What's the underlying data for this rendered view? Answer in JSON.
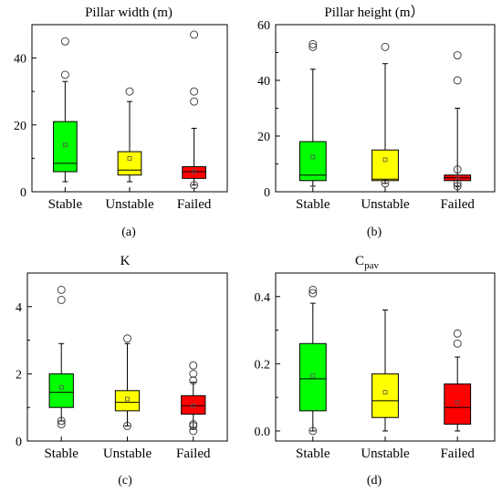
{
  "colors": {
    "stable": "#00ff00",
    "unstable": "#ffff00",
    "failed": "#ff0000"
  },
  "chart_data": [
    {
      "type": "boxplot",
      "panel": "(a)",
      "title": "Pillar width (m)",
      "categories": [
        "Stable",
        "Unstable",
        "Failed"
      ],
      "ylim": [
        0,
        50
      ],
      "yticks": [
        0,
        20,
        40
      ],
      "boxes": [
        {
          "q1": 6,
          "median": 8.5,
          "q3": 21,
          "mean": 14,
          "whisker_low": 3,
          "whisker_high": 33,
          "outliers": [
            35,
            45
          ]
        },
        {
          "q1": 5,
          "median": 6.5,
          "q3": 12,
          "mean": 10,
          "whisker_low": 3,
          "whisker_high": 27,
          "outliers": [
            30
          ]
        },
        {
          "q1": 4,
          "median": 6,
          "q3": 7.5,
          "mean": 6,
          "whisker_low": 2,
          "whisker_high": 19,
          "outliers": [
            2,
            27,
            30,
            47
          ]
        }
      ]
    },
    {
      "type": "boxplot",
      "panel": "(b)",
      "title": "Pillar height (m）",
      "categories": [
        "Stable",
        "Unstable",
        "Failed"
      ],
      "ylim": [
        0,
        60
      ],
      "yticks": [
        0,
        20,
        40,
        60
      ],
      "boxes": [
        {
          "q1": 4,
          "median": 6,
          "q3": 18,
          "mean": 12.5,
          "whisker_low": 2,
          "whisker_high": 44,
          "outliers": [
            52,
            53
          ]
        },
        {
          "q1": 4,
          "median": 4.5,
          "q3": 15,
          "mean": 11.5,
          "whisker_low": 3,
          "whisker_high": 46,
          "outliers": [
            3,
            52
          ]
        },
        {
          "q1": 4,
          "median": 5,
          "q3": 6,
          "mean": 5.5,
          "whisker_low": 2,
          "whisker_high": 30,
          "outliers": [
            2,
            3,
            8,
            40,
            49
          ]
        }
      ]
    },
    {
      "type": "boxplot",
      "panel": "(c)",
      "title": "K",
      "categories": [
        "Stable",
        "Unstable",
        "Failed"
      ],
      "ylim": [
        0,
        5
      ],
      "yticks": [
        0,
        2,
        4
      ],
      "boxes": [
        {
          "q1": 1.0,
          "median": 1.45,
          "q3": 2.0,
          "mean": 1.6,
          "whisker_low": 0.6,
          "whisker_high": 2.9,
          "outliers": [
            0.5,
            0.6,
            4.2,
            4.5
          ]
        },
        {
          "q1": 0.9,
          "median": 1.15,
          "q3": 1.5,
          "mean": 1.25,
          "whisker_low": 0.45,
          "whisker_high": 2.9,
          "outliers": [
            0.45,
            3.05
          ]
        },
        {
          "q1": 0.8,
          "median": 1.05,
          "q3": 1.35,
          "mean": 1.05,
          "whisker_low": 0.35,
          "whisker_high": 1.75,
          "outliers": [
            0.3,
            0.45,
            0.5,
            1.8,
            2.0,
            2.25
          ]
        }
      ]
    },
    {
      "type": "boxplot",
      "panel": "(d)",
      "title_main": "C",
      "title_sub": "pav",
      "categories": [
        "Stable",
        "Unstable",
        "Failed"
      ],
      "ylim": [
        -0.03,
        0.47
      ],
      "yticks": [
        0.0,
        0.2,
        0.4
      ],
      "boxes": [
        {
          "q1": 0.06,
          "median": 0.155,
          "q3": 0.26,
          "mean": 0.165,
          "whisker_low": 0.0,
          "whisker_high": 0.38,
          "outliers": [
            0.0,
            0.41,
            0.42
          ]
        },
        {
          "q1": 0.04,
          "median": 0.09,
          "q3": 0.17,
          "mean": 0.115,
          "whisker_low": 0.0,
          "whisker_high": 0.36,
          "outliers": []
        },
        {
          "q1": 0.02,
          "median": 0.07,
          "q3": 0.14,
          "mean": 0.085,
          "whisker_low": 0.0,
          "whisker_high": 0.22,
          "outliers": [
            0.26,
            0.29
          ]
        }
      ]
    }
  ]
}
